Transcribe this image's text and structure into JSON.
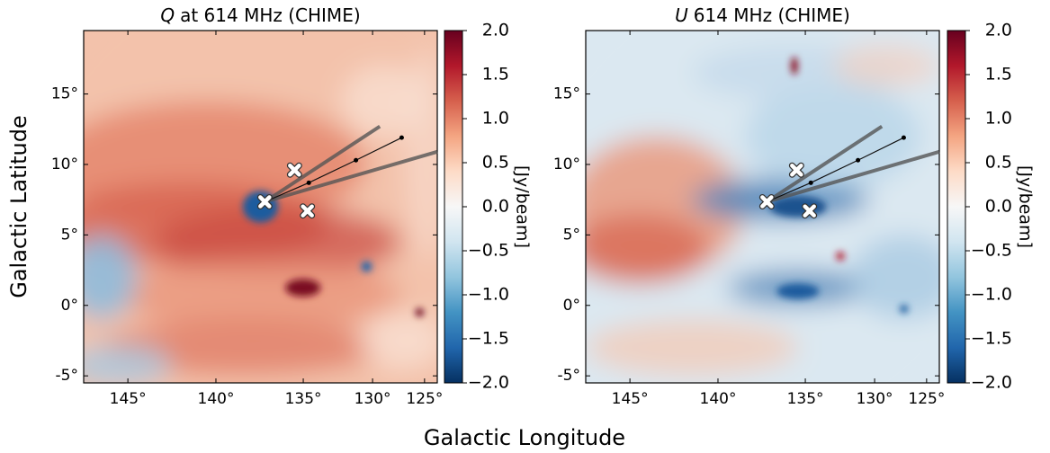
{
  "figure": {
    "xlabel": "Galactic Longitude",
    "ylabel": "Galactic Latitude"
  },
  "chart_data": [
    {
      "type": "heatmap",
      "title_var": "Q",
      "title": "at 614 MHz (CHIME)",
      "xlim": [
        147.5,
        123.8
      ],
      "ylim": [
        -5.5,
        19.5
      ],
      "xticks": [
        {
          "value": 145,
          "label": "145°"
        },
        {
          "value": 140,
          "label": "140°"
        },
        {
          "value": 135,
          "label": "135°"
        },
        {
          "value": 130,
          "label": "130°"
        },
        {
          "value": 125,
          "label": "125°"
        }
      ],
      "yticks": [
        {
          "value": -5,
          "label": "-5°"
        },
        {
          "value": 0,
          "label": "0°"
        },
        {
          "value": 5,
          "label": "5°"
        },
        {
          "value": 10,
          "label": "10°"
        },
        {
          "value": 15,
          "label": "15°"
        }
      ],
      "colorbar": {
        "label": "[Jy/beam]",
        "lim": [
          -2,
          2
        ],
        "ticks": [
          {
            "value": -2,
            "label": "−2.0"
          },
          {
            "value": -1.5,
            "label": "−1.5"
          },
          {
            "value": -1,
            "label": "−1.0"
          },
          {
            "value": -0.5,
            "label": "−0.5"
          },
          {
            "value": 0,
            "label": "0.0"
          },
          0.5,
          {
            "value": 1,
            "label": "1.0"
          },
          1.5,
          {
            "value": 2,
            "label": "2.0"
          }
        ]
      },
      "wedge": {
        "x": [
          129.3,
          137.2,
          123.8
        ],
        "y": [
          12.7,
          7.35,
          10.9
        ]
      },
      "path": {
        "x": [
          137.2,
          134.6,
          131.2,
          127.2
        ],
        "y": [
          7.35,
          8.7,
          10.3,
          11.9
        ]
      },
      "markers": {
        "x": [
          137.2,
          135.5,
          134.7
        ],
        "y": [
          7.35,
          9.6,
          6.7
        ]
      }
    },
    {
      "type": "heatmap",
      "title_var": "U",
      "title": "614 MHz (CHIME)",
      "xlim": [
        147.5,
        123.8
      ],
      "ylim": [
        -5.5,
        19.5
      ],
      "xticks": [
        {
          "value": 145,
          "label": "145°"
        },
        {
          "value": 140,
          "label": "140°"
        },
        {
          "value": 135,
          "label": "135°"
        },
        {
          "value": 130,
          "label": "130°"
        },
        {
          "value": 125,
          "label": "125°"
        }
      ],
      "yticks": [
        {
          "value": -5,
          "label": "-5°"
        },
        {
          "value": 0,
          "label": "0°"
        },
        {
          "value": 5,
          "label": "5°"
        },
        {
          "value": 10,
          "label": "10°"
        },
        {
          "value": 15,
          "label": "15°"
        }
      ],
      "colorbar": {
        "label": "[Jy/beam]",
        "lim": [
          -2,
          2
        ],
        "ticks": [
          {
            "value": -2,
            "label": "−2.0"
          },
          {
            "value": -1.5,
            "label": "−1.5"
          },
          {
            "value": -1,
            "label": "−1.0"
          },
          {
            "value": -0.5,
            "label": "−0.5"
          },
          {
            "value": 0,
            "label": "0.0"
          },
          0.5,
          {
            "value": 1,
            "label": "1.0"
          },
          1.5,
          {
            "value": 2,
            "label": "2.0"
          }
        ]
      },
      "wedge": {
        "x": [
          129.3,
          137.2,
          123.8
        ],
        "y": [
          12.7,
          7.35,
          10.9
        ]
      },
      "path": {
        "x": [
          137.2,
          134.6,
          131.2,
          127.2
        ],
        "y": [
          7.35,
          8.7,
          10.3,
          11.9
        ]
      },
      "markers": {
        "x": [
          137.2,
          135.5,
          134.7
        ],
        "y": [
          7.35,
          9.6,
          6.7
        ]
      }
    }
  ]
}
